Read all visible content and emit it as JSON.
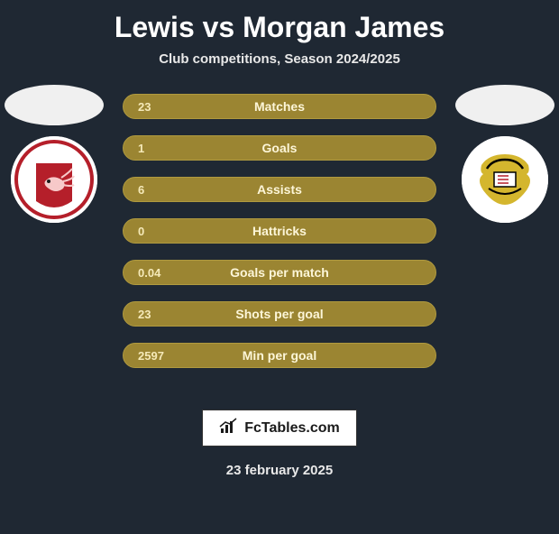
{
  "title": "Lewis vs Morgan James",
  "subtitle": "Club competitions, Season 2024/2025",
  "footer_date": "23 february 2025",
  "logo_text": "FcTables.com",
  "colors": {
    "background": "#1f2833",
    "row_bg": "#9b8532",
    "row_border": "#b09a3f",
    "row_text": "#f5e9b8",
    "label_text": "#fdf6d8",
    "title_text": "#ffffff"
  },
  "stats": [
    {
      "label": "Matches",
      "value": "23"
    },
    {
      "label": "Goals",
      "value": "1"
    },
    {
      "label": "Assists",
      "value": "6"
    },
    {
      "label": "Hattricks",
      "value": "0"
    },
    {
      "label": "Goals per match",
      "value": "0.04"
    },
    {
      "label": "Shots per goal",
      "value": "23"
    },
    {
      "label": "Min per goal",
      "value": "2597"
    }
  ],
  "left_club": {
    "name": "morecambe",
    "primary_color": "#b51f2a",
    "secondary_color": "#ffffff"
  },
  "right_club": {
    "name": "doncaster",
    "primary_color": "#d4b62e",
    "secondary_color": "#000000"
  }
}
